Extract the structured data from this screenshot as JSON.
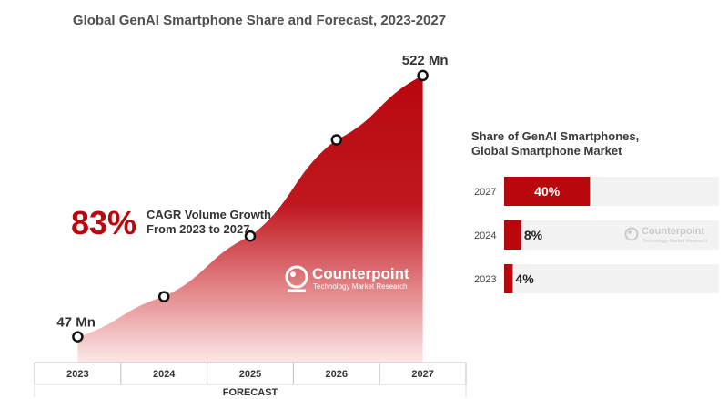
{
  "colors": {
    "accent": "#b8070d",
    "point_stroke": "#111111",
    "text_dark": "#333333",
    "bar_track": "#f2f2f2",
    "logo": "#c9c9c9"
  },
  "chart_data": [
    {
      "type": "area",
      "title": "Global GenAI Smartphone Share and Forecast, 2023-2027",
      "categories": [
        "2023",
        "2024",
        "2025",
        "2026",
        "2027"
      ],
      "values": [
        47,
        120,
        230,
        405,
        522
      ],
      "unit": "Mn",
      "ylim": [
        0,
        560
      ],
      "xlabel": "FORECAST",
      "data_labels": {
        "first": "47 Mn",
        "last": "522 Mn"
      },
      "annotation": {
        "value": "83%",
        "text_line1": "CAGR Volume Growth",
        "text_line2": "From 2023 to 2027"
      }
    },
    {
      "type": "bar",
      "orientation": "horizontal",
      "title_line1": "Share of GenAI Smartphones,",
      "title_line2": "Global Smartphone Market",
      "categories": [
        "2027",
        "2024",
        "2023"
      ],
      "values": [
        40,
        8,
        4
      ],
      "value_labels": [
        "40%",
        "8%",
        "4%"
      ],
      "xlim": [
        0,
        100
      ]
    }
  ],
  "watermark": {
    "brand": "Counterpoint",
    "tagline": "Technology Market Research"
  }
}
